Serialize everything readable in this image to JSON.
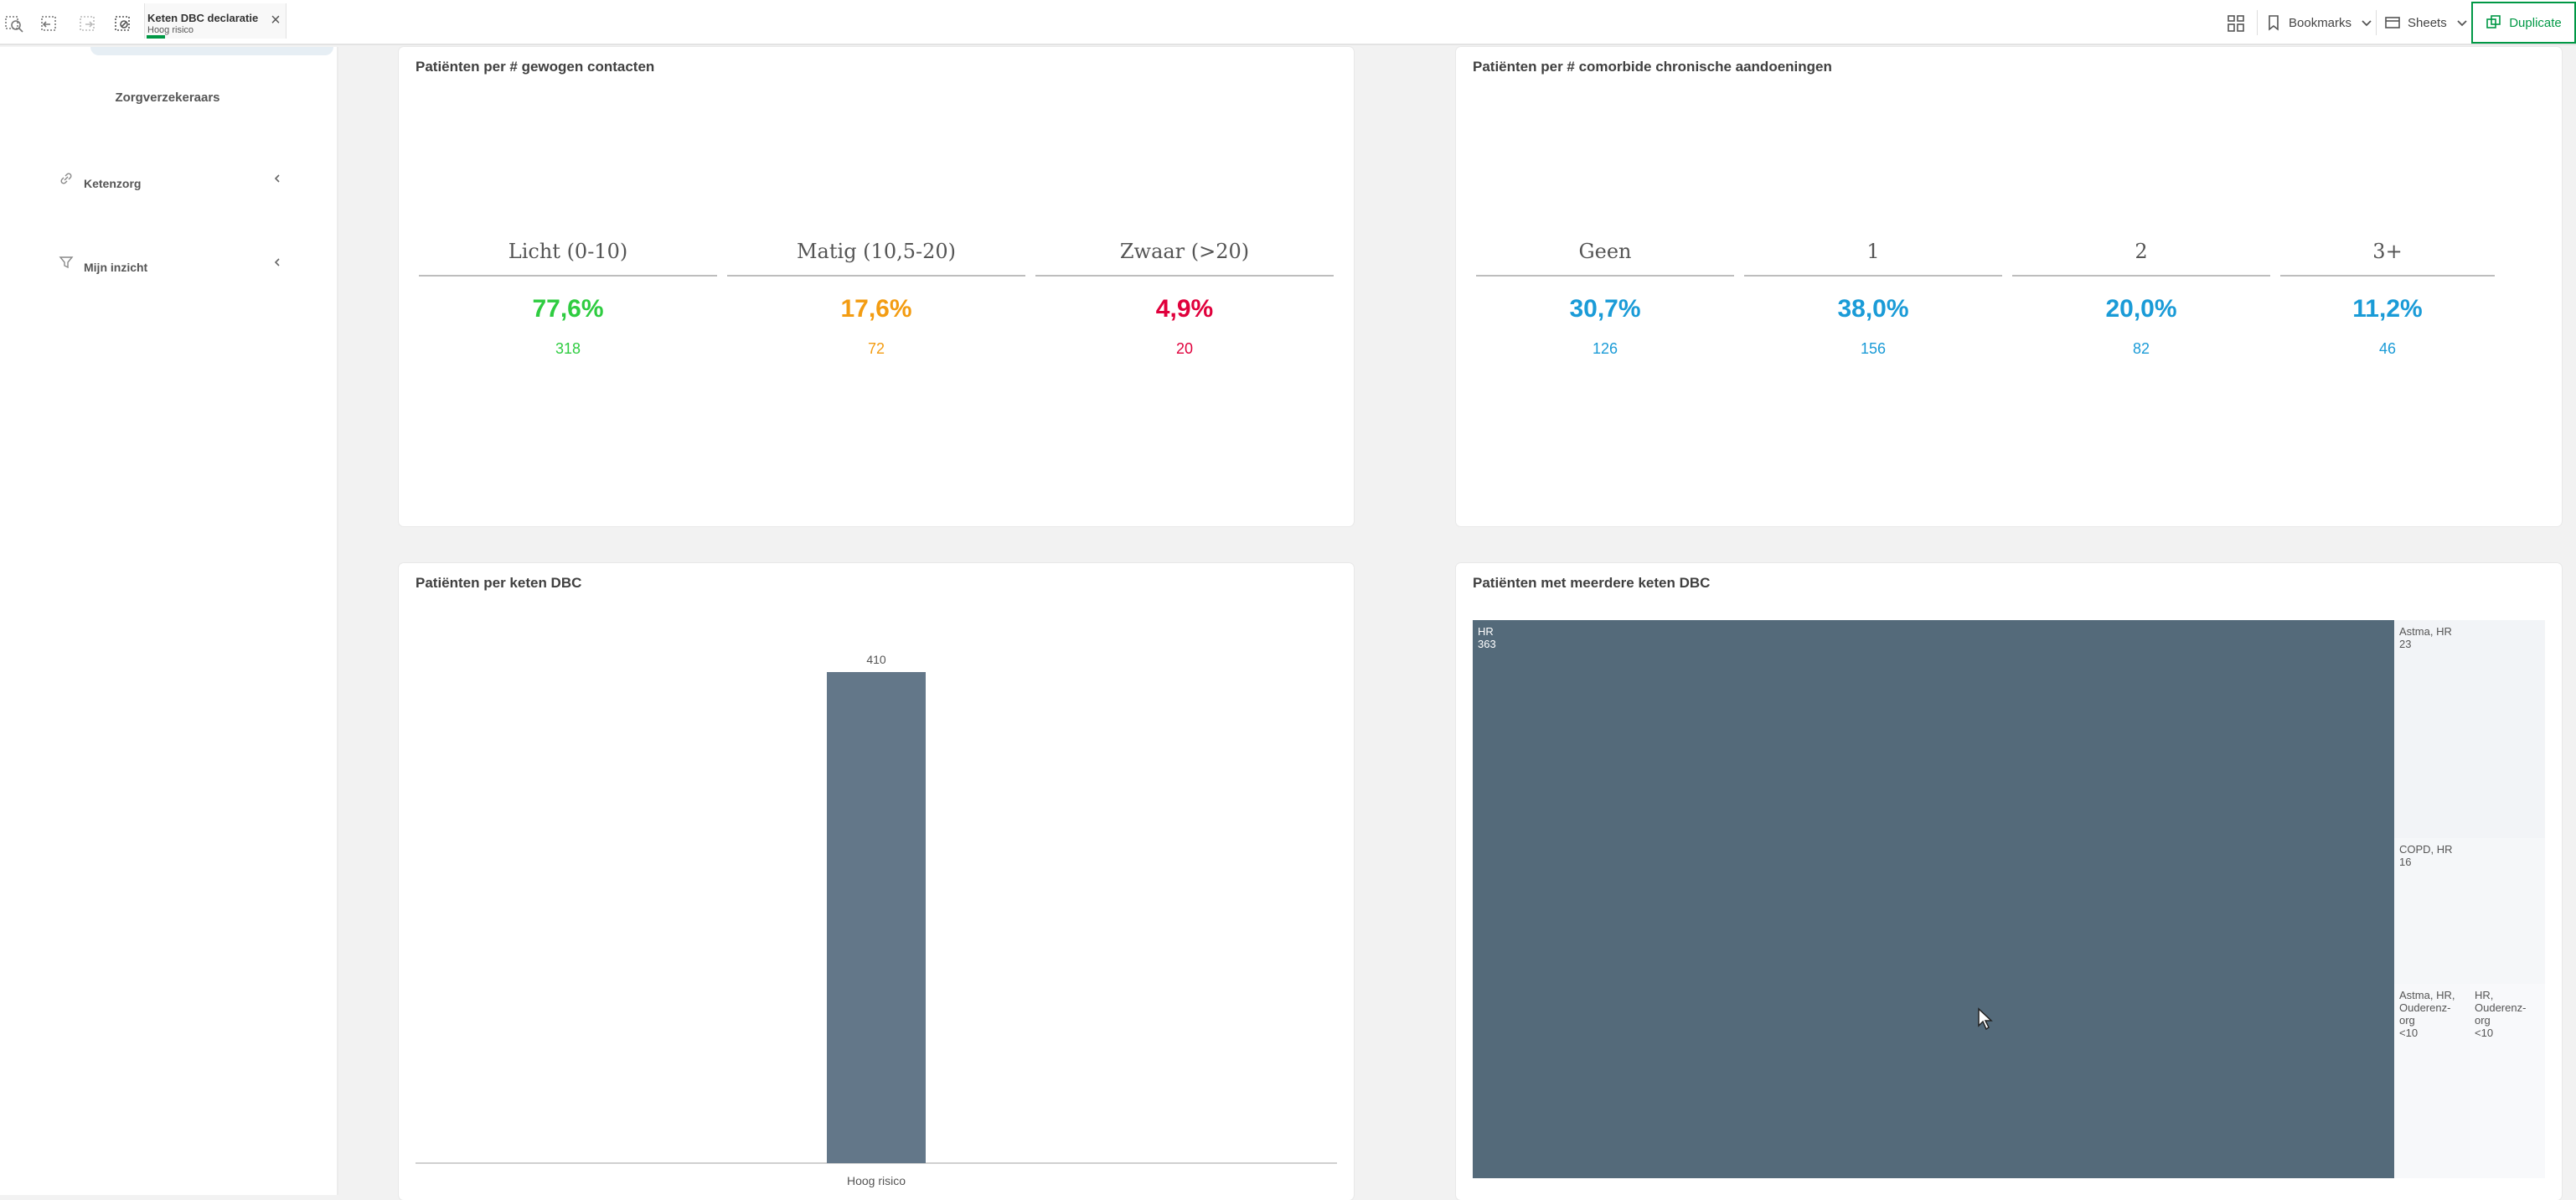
{
  "toolbar": {
    "selection": {
      "field": "Keten DBC declaratie",
      "value": "Hoog risico"
    },
    "bookmarks_label": "Bookmarks",
    "sheets_label": "Sheets",
    "duplicate_label": "Duplicate"
  },
  "sidebar": {
    "link_label": "Zorgverzekeraars",
    "items": [
      {
        "label": "Ketenzorg",
        "icon": "link-icon"
      },
      {
        "label": "Mijn inzicht",
        "icon": "filter-icon"
      }
    ]
  },
  "cards": {
    "contacts": {
      "title": "Patiënten per # gewogen contacten",
      "kpis": [
        {
          "label": "Licht (0-10)",
          "pct": "77,6%",
          "count": "318",
          "color": "#2ecc40"
        },
        {
          "label": "Matig (10,5-20)",
          "pct": "17,6%",
          "count": "72",
          "color": "#f39c12"
        },
        {
          "label": "Zwaar (>20)",
          "pct": "4,9%",
          "count": "20",
          "color": "#e0003c"
        }
      ]
    },
    "comorbid": {
      "title": "Patiënten per # comorbide chronische aandoeningen",
      "kpis": [
        {
          "label": "Geen",
          "pct": "30,7%",
          "count": "126",
          "color": "#1a9bd7"
        },
        {
          "label": "1",
          "pct": "38,0%",
          "count": "156",
          "color": "#1a9bd7"
        },
        {
          "label": "2",
          "pct": "20,0%",
          "count": "82",
          "color": "#1a9bd7"
        },
        {
          "label": "3+",
          "pct": "11,2%",
          "count": "46",
          "color": "#1a9bd7"
        }
      ]
    },
    "keten_dbc": {
      "title": "Patiënten per keten DBC"
    },
    "meerdere": {
      "title": "Patiënten met meerdere keten DBC"
    }
  },
  "chart_data": [
    {
      "type": "bar",
      "categories": [
        "Hoog risico"
      ],
      "values": [
        410
      ],
      "data_labels": [
        "410"
      ],
      "ylim": [
        0,
        410
      ],
      "grid": false,
      "bar_color": "#637789"
    },
    {
      "type": "treemap",
      "cells": [
        {
          "name": "HR",
          "value": 363,
          "label": "363",
          "color": "#546a7a"
        },
        {
          "name": "Astma, HR",
          "value": 23,
          "label": "23",
          "color": "#f2f4f7"
        },
        {
          "name": "COPD, HR",
          "value": 16,
          "label": "16",
          "color": "#f5f7f9"
        },
        {
          "name": "Astma, HR, Ouderenz-org",
          "value": null,
          "label": "<10",
          "color": "#f7f8fa"
        },
        {
          "name": "HR, Ouderenz-org",
          "value": null,
          "label": "<10",
          "color": "#f8f9fb"
        }
      ]
    }
  ]
}
